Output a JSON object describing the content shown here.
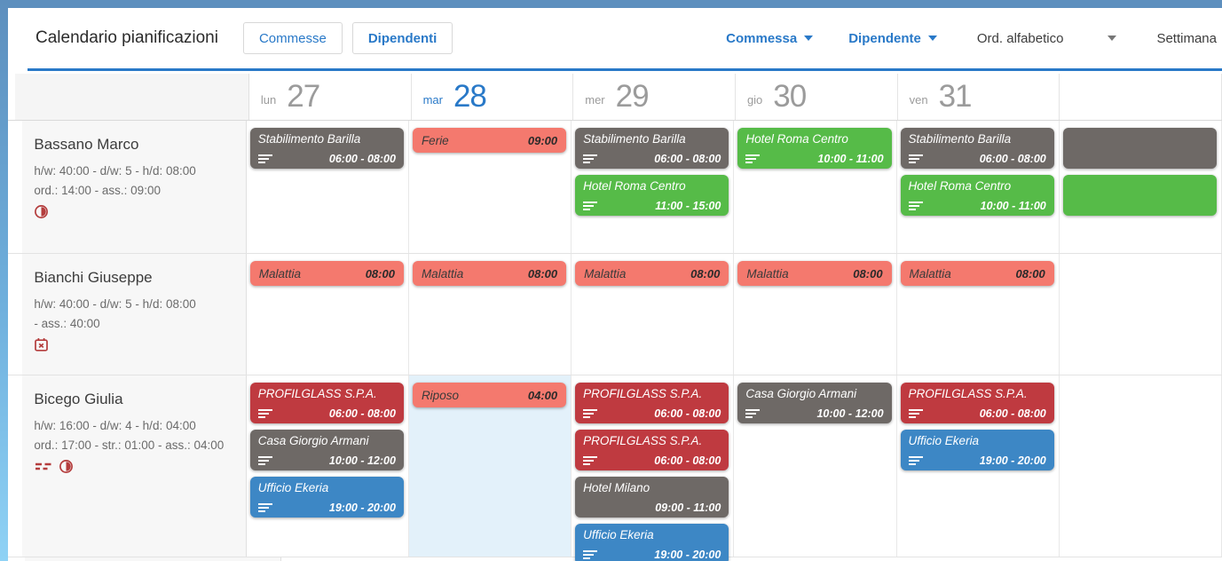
{
  "toolbar": {
    "title": "Calendario pianificazioni",
    "buttons": [
      {
        "label": "Commesse",
        "active": false
      },
      {
        "label": "Dipendenti",
        "active": true
      }
    ],
    "filters": [
      {
        "label": "Commessa",
        "style": "link",
        "caret": true
      },
      {
        "label": "Dipendente",
        "style": "link",
        "caret": true
      },
      {
        "label": "Ord. alfabetico",
        "style": "plain",
        "caret": true
      },
      {
        "label": "Settimana",
        "style": "plain",
        "caret": false
      }
    ]
  },
  "colors": {
    "accent": "#2979c8",
    "gray": "#6e6966",
    "green": "#56bb48",
    "salmon": "#f4796e",
    "red": "#bf3a40",
    "blue": "#3d87c5",
    "icon_red": "#b43d3d",
    "today_cell": "#e3f1fa"
  },
  "days": [
    {
      "abbr": "lun",
      "num": "27",
      "today": false
    },
    {
      "abbr": "mar",
      "num": "28",
      "today": true
    },
    {
      "abbr": "mer",
      "num": "29",
      "today": false
    },
    {
      "abbr": "gio",
      "num": "30",
      "today": false
    },
    {
      "abbr": "ven",
      "num": "31",
      "today": false
    },
    {
      "abbr": "",
      "num": "",
      "today": false,
      "partial": true
    }
  ],
  "employees": [
    {
      "name": "Bassano Marco",
      "stats": [
        "h/w: 40:00 - d/w: 5 - h/d: 08:00",
        "ord.: 14:00 - ass.: 09:00"
      ],
      "icons": [
        "half-moon"
      ]
    },
    {
      "name": "Bianchi Giuseppe",
      "stats": [
        "h/w: 40:00 - d/w: 5 - h/d: 08:00",
        "- ass.: 40:00"
      ],
      "icons": [
        "calendar-x"
      ]
    },
    {
      "name": "Bicego Giulia",
      "stats": [
        "h/w: 16:00 - d/w: 4 - h/d: 04:00",
        "ord.: 17:00 - str.: 01:00 - ass.: 04:00"
      ],
      "icons": [
        "double-dash",
        "half-moon"
      ]
    }
  ],
  "schedule": [
    [
      {
        "events": [
          {
            "title": "Stabilimento Barilla",
            "time": "06:00 - 08:00",
            "color": "gray",
            "icon": true
          }
        ]
      },
      {
        "events": [
          {
            "title": "Ferie",
            "time": "09:00",
            "color": "salmon",
            "single": true
          }
        ]
      },
      {
        "events": [
          {
            "title": "Stabilimento Barilla",
            "time": "06:00 - 08:00",
            "color": "gray",
            "icon": true
          },
          {
            "title": "Hotel Roma Centro",
            "time": "11:00 - 15:00",
            "color": "green",
            "icon": true
          }
        ]
      },
      {
        "events": [
          {
            "title": "Hotel Roma Centro",
            "time": "10:00 - 11:00",
            "color": "green",
            "icon": true
          }
        ]
      },
      {
        "events": [
          {
            "title": "Stabilimento Barilla",
            "time": "06:00 - 08:00",
            "color": "gray",
            "icon": true
          },
          {
            "title": "Hotel Roma Centro",
            "time": "10:00 - 11:00",
            "color": "green",
            "icon": true
          }
        ]
      },
      {
        "events": [
          {
            "title": "",
            "time": "",
            "color": "gray",
            "icon": false
          },
          {
            "title": "",
            "time": "",
            "color": "green",
            "icon": false
          }
        ]
      }
    ],
    [
      {
        "events": [
          {
            "title": "Malattia",
            "time": "08:00",
            "color": "salmon",
            "single": true
          }
        ]
      },
      {
        "events": [
          {
            "title": "Malattia",
            "time": "08:00",
            "color": "salmon",
            "single": true
          }
        ]
      },
      {
        "events": [
          {
            "title": "Malattia",
            "time": "08:00",
            "color": "salmon",
            "single": true
          }
        ]
      },
      {
        "events": [
          {
            "title": "Malattia",
            "time": "08:00",
            "color": "salmon",
            "single": true
          }
        ]
      },
      {
        "events": [
          {
            "title": "Malattia",
            "time": "08:00",
            "color": "salmon",
            "single": true
          }
        ]
      },
      {
        "events": []
      }
    ],
    [
      {
        "events": [
          {
            "title": "PROFILGLASS S.P.A.",
            "time": "06:00 - 08:00",
            "color": "red",
            "icon": true
          },
          {
            "title": "Casa Giorgio Armani",
            "time": "10:00 - 12:00",
            "color": "gray",
            "icon": true
          },
          {
            "title": "Ufficio Ekeria",
            "time": "19:00 - 20:00",
            "color": "blue",
            "icon": true
          }
        ]
      },
      {
        "highlight": true,
        "events": [
          {
            "title": "Riposo",
            "time": "04:00",
            "color": "salmon",
            "single": true
          }
        ]
      },
      {
        "events": [
          {
            "title": "PROFILGLASS S.P.A.",
            "time": "06:00 - 08:00",
            "color": "red",
            "icon": true
          },
          {
            "title": "PROFILGLASS S.P.A.",
            "time": "06:00 - 08:00",
            "color": "red",
            "icon": true
          },
          {
            "title": "Hotel Milano",
            "time": "09:00 - 11:00",
            "color": "gray",
            "icon": false
          },
          {
            "title": "Ufficio Ekeria",
            "time": "19:00 - 20:00",
            "color": "blue",
            "icon": true
          }
        ]
      },
      {
        "events": [
          {
            "title": "Casa Giorgio Armani",
            "time": "10:00 - 12:00",
            "color": "gray",
            "icon": true
          }
        ]
      },
      {
        "events": [
          {
            "title": "PROFILGLASS S.P.A.",
            "time": "06:00 - 08:00",
            "color": "red",
            "icon": true
          },
          {
            "title": "Ufficio Ekeria",
            "time": "19:00 - 20:00",
            "color": "blue",
            "icon": true
          }
        ]
      },
      {
        "events": []
      }
    ]
  ]
}
